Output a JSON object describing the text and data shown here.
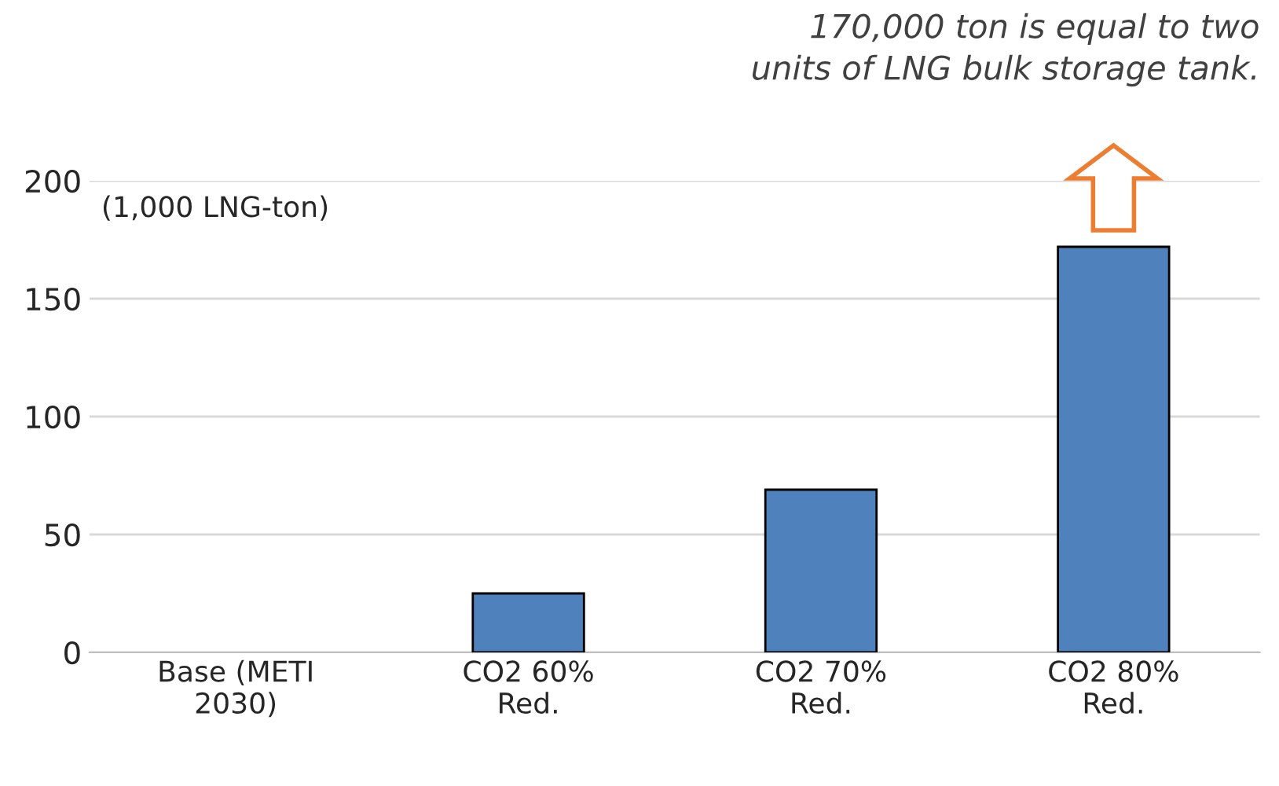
{
  "chart_data": {
    "type": "bar",
    "categories": [
      "Base (METI\n2030)",
      "CO2 60%\nRed.",
      "CO2 70%\nRed.",
      "CO2 80%\nRed."
    ],
    "values": [
      0,
      25,
      69,
      172
    ],
    "color": "#4f81bd",
    "ylim": [
      0,
      200
    ],
    "yticks": [
      0,
      50,
      100,
      150,
      200
    ],
    "grid": "y",
    "annotations": [
      "(1,000 LNG-ton)",
      "170,000 ton is equal to two\nunits of LNG bulk storage tank."
    ]
  }
}
